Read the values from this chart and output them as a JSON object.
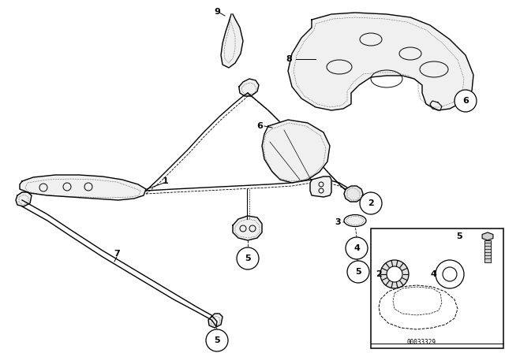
{
  "bg_color": "#ffffff",
  "line_color": "#000000",
  "fig_width": 6.4,
  "fig_height": 4.48,
  "dpi": 100,
  "diagram_code": "00033329"
}
